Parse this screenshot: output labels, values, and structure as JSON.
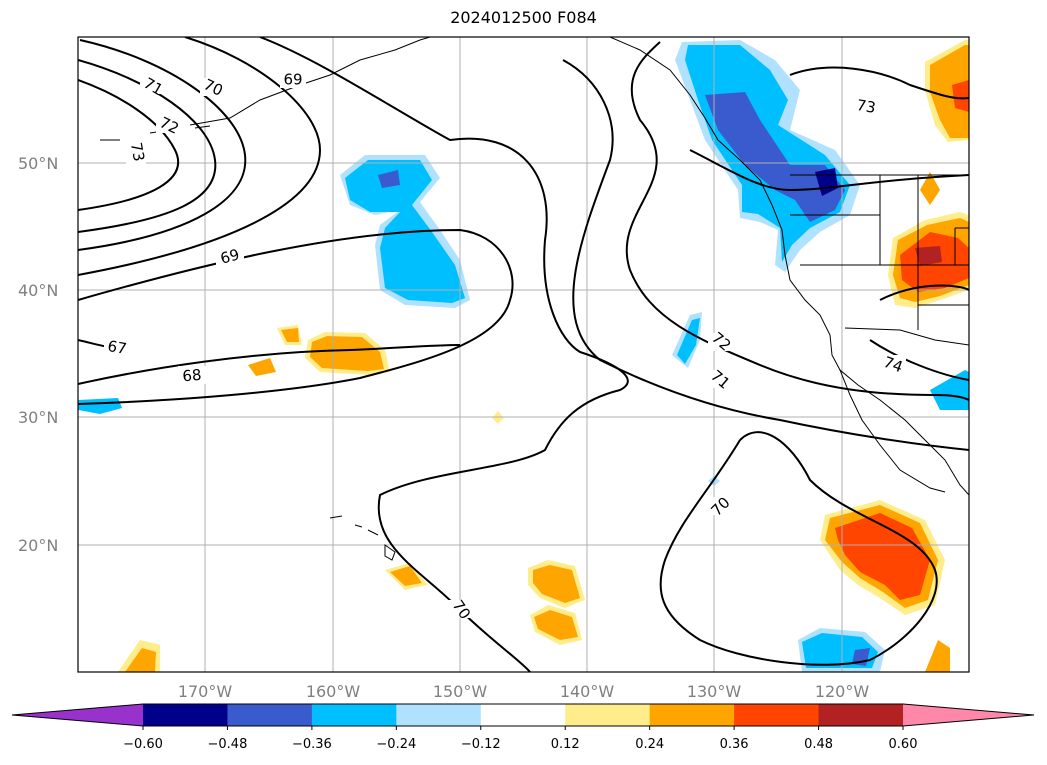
{
  "title": "2024012500 F084",
  "map": {
    "projection": "equirectangular",
    "lon_range": [
      -180,
      -110
    ],
    "lat_range": [
      10,
      60
    ],
    "lat_gridlines": [
      {
        "lat": 50,
        "label": "50°N"
      },
      {
        "lat": 40,
        "label": "40°N"
      },
      {
        "lat": 30,
        "label": "30°N"
      },
      {
        "lat": 20,
        "label": "20°N"
      }
    ],
    "lon_gridlines": [
      {
        "lon": -170,
        "label": "170°W"
      },
      {
        "lon": -160,
        "label": "160°W"
      },
      {
        "lon": -150,
        "label": "150°W"
      },
      {
        "lon": -140,
        "label": "140°W"
      },
      {
        "lon": -130,
        "label": "130°W"
      },
      {
        "lon": -120,
        "label": "120°W"
      }
    ],
    "contour_labels": [
      "71",
      "70",
      "69",
      "72",
      "73",
      "69",
      "67",
      "68",
      "72",
      "71",
      "73",
      "74",
      "70",
      "70"
    ]
  },
  "colorbar": {
    "extend": "both",
    "colors": [
      "#9932cc",
      "#00008b",
      "#3a5bcd",
      "#00bfff",
      "#b0e2ff",
      "#ffffff",
      "#ffec8b",
      "#ffa500",
      "#ff4500",
      "#b22222",
      "#ff88aa"
    ],
    "tick_labels": [
      "−0.60",
      "−0.48",
      "−0.36",
      "−0.24",
      "−0.12",
      "0.12",
      "0.24",
      "0.36",
      "0.48",
      "0.60"
    ]
  }
}
